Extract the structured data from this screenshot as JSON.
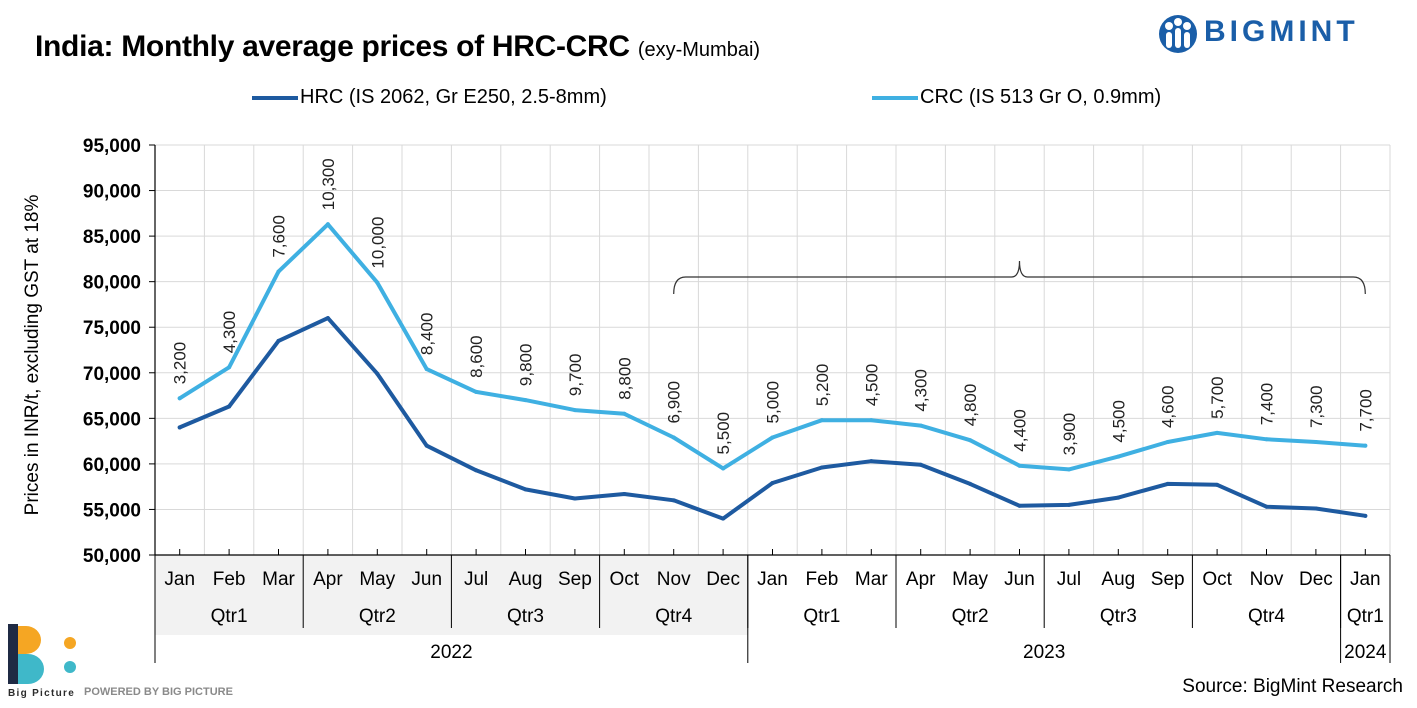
{
  "header": {
    "title": "India: Monthly average prices of HRC-CRC",
    "subtitle": "(exy-Mumbai)",
    "brand": "BIGMINT"
  },
  "footer": {
    "source": "Source: BigMint Research",
    "powered_by": "POWERED BY BIG PICTURE",
    "bp_logo_text": "Big Picture"
  },
  "colors": {
    "hrc": "#1e5aa0",
    "crc": "#3fb0e2",
    "grid": "#d9d9d9",
    "brand": "#1a5ea8"
  },
  "chart_data": {
    "type": "line",
    "title": "India: Monthly average prices of HRC-CRC",
    "ylabel": "Prices in INR/t, excluding GST at 18%",
    "xlabel": "",
    "ylim": [
      50000,
      95000
    ],
    "yticks": [
      50000,
      55000,
      60000,
      65000,
      70000,
      75000,
      80000,
      85000,
      90000,
      95000
    ],
    "ytick_labels": [
      "50,000",
      "55,000",
      "60,000",
      "65,000",
      "70,000",
      "75,000",
      "80,000",
      "85,000",
      "90,000",
      "95,000"
    ],
    "categories": [
      "Jan",
      "Feb",
      "Mar",
      "Apr",
      "May",
      "Jun",
      "Jul",
      "Aug",
      "Sep",
      "Oct",
      "Nov",
      "Dec",
      "Jan",
      "Feb",
      "Mar",
      "Apr",
      "May",
      "Jun",
      "Jul",
      "Aug",
      "Sep",
      "Oct",
      "Nov",
      "Dec",
      "Jan"
    ],
    "quarters": [
      {
        "label": "Qtr1",
        "start": 0,
        "end": 2
      },
      {
        "label": "Qtr2",
        "start": 3,
        "end": 5
      },
      {
        "label": "Qtr3",
        "start": 6,
        "end": 8
      },
      {
        "label": "Qtr4",
        "start": 9,
        "end": 11
      },
      {
        "label": "Qtr1",
        "start": 12,
        "end": 14
      },
      {
        "label": "Qtr2",
        "start": 15,
        "end": 17
      },
      {
        "label": "Qtr3",
        "start": 18,
        "end": 20
      },
      {
        "label": "Qtr4",
        "start": 21,
        "end": 23
      },
      {
        "label": "Qtr1",
        "start": 24,
        "end": 24
      }
    ],
    "years": [
      {
        "label": "2022",
        "start": 0,
        "end": 11
      },
      {
        "label": "2023",
        "start": 12,
        "end": 23
      },
      {
        "label": "2024",
        "start": 24,
        "end": 24
      }
    ],
    "series": [
      {
        "name": "HRC (IS 2062, Gr E250, 2.5-8mm)",
        "values": [
          64000,
          66300,
          73500,
          76000,
          69900,
          62000,
          59300,
          57200,
          56200,
          56700,
          56000,
          54000,
          57900,
          59600,
          60300,
          59900,
          57800,
          55400,
          55500,
          56300,
          57800,
          57700,
          55300,
          55100,
          54300
        ]
      },
      {
        "name": "CRC (IS 513 Gr O, 0.9mm)",
        "values": [
          67200,
          70600,
          81100,
          86300,
          79900,
          70400,
          67900,
          67000,
          65900,
          65500,
          62900,
          59500,
          62900,
          64800,
          64800,
          64200,
          62600,
          59800,
          59400,
          60800,
          62400,
          63400,
          62700,
          62400,
          62000
        ]
      }
    ],
    "data_labels": [
      "3,200",
      "4,300",
      "7,600",
      "10,300",
      "10,000",
      "8,400",
      "8,600",
      "9,800",
      "9,700",
      "8,800",
      "6,900",
      "5,500",
      "5,000",
      "5,200",
      "4,500",
      "4,300",
      "4,800",
      "4,400",
      "3,900",
      "4,500",
      "4,600",
      "5,700",
      "7,400",
      "7,300",
      "7,700"
    ],
    "annotation": {
      "type": "bracket",
      "from_index": 10,
      "to_index": 24
    }
  }
}
